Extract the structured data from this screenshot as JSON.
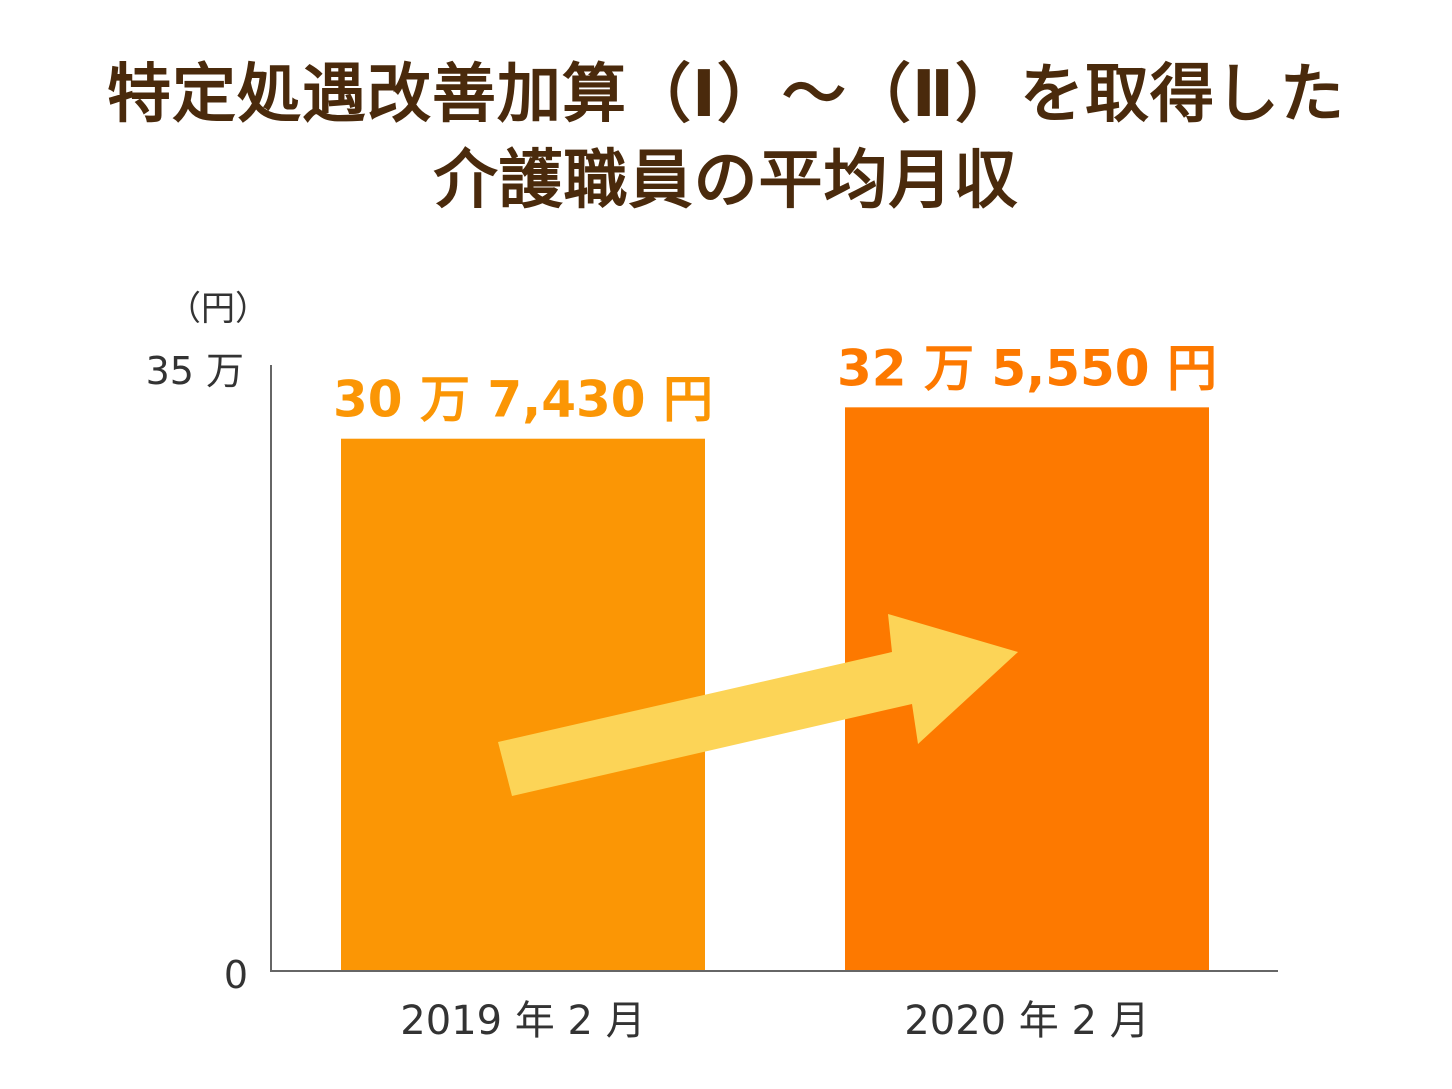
{
  "title": {
    "line1": "特定処遇改善加算（Ⅰ）〜（Ⅱ）を取得した",
    "line2": "介護職員の平均月収"
  },
  "chart_data": {
    "type": "bar",
    "categories": [
      "2019 年 2 月",
      "2020 年 2 月"
    ],
    "values": [
      307430,
      325550
    ],
    "data_labels": [
      "30 万 7,430 円",
      "32 万 5,550 円"
    ],
    "ylabel": "（円）",
    "yticks": [
      "0",
      "35 万"
    ],
    "ylim": [
      0,
      350000
    ],
    "grid": false,
    "legend": "none",
    "colors": [
      "#fb9605",
      "#fd7900"
    ],
    "arrow_color": "#fcd457"
  }
}
